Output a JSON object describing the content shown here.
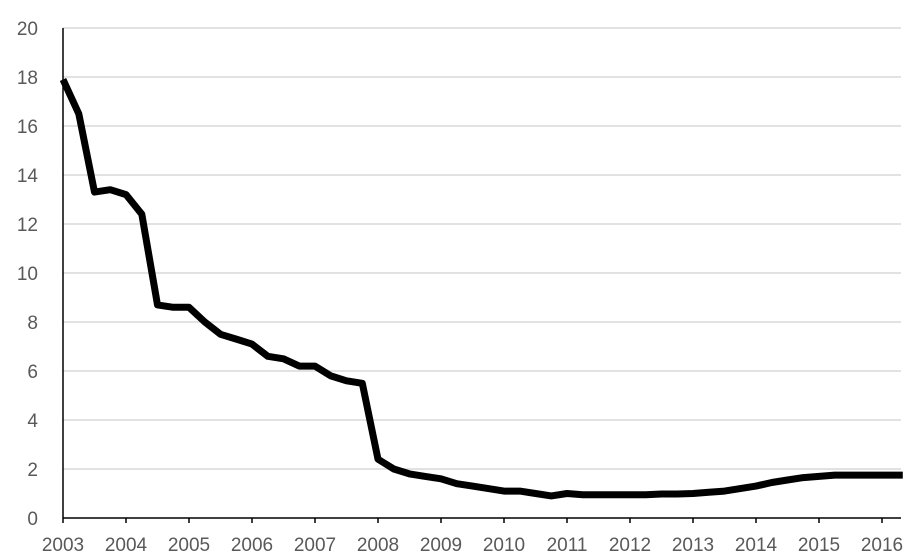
{
  "chart_data": {
    "type": "line",
    "title": "",
    "xlabel": "",
    "ylabel": "",
    "ylim": [
      0,
      20
    ],
    "yticks": [
      0,
      2,
      4,
      6,
      8,
      10,
      12,
      14,
      16,
      18,
      20
    ],
    "xlim": [
      2003,
      2016.33
    ],
    "xticks": [
      "2003",
      "2004",
      "2005",
      "2006",
      "2007",
      "2008",
      "2009",
      "2010",
      "2011",
      "2012",
      "2013",
      "2014",
      "2015",
      "2016"
    ],
    "grid": true,
    "legend": "none",
    "series": [
      {
        "color": "#000000",
        "x": [
          2003.0,
          2003.25,
          2003.5,
          2003.75,
          2004.0,
          2004.25,
          2004.5,
          2004.75,
          2005.0,
          2005.25,
          2005.5,
          2005.75,
          2006.0,
          2006.25,
          2006.5,
          2006.75,
          2007.0,
          2007.25,
          2007.5,
          2007.75,
          2008.0,
          2008.25,
          2008.5,
          2008.75,
          2009.0,
          2009.25,
          2009.5,
          2009.75,
          2010.0,
          2010.25,
          2010.5,
          2010.75,
          2011.0,
          2011.25,
          2011.5,
          2011.75,
          2012.0,
          2012.25,
          2012.5,
          2012.75,
          2013.0,
          2013.25,
          2013.5,
          2013.75,
          2014.0,
          2014.25,
          2014.5,
          2014.75,
          2015.0,
          2015.25,
          2015.5,
          2015.75,
          2016.0,
          2016.25,
          2016.33
        ],
        "y": [
          17.9,
          16.5,
          13.3,
          13.4,
          13.2,
          12.4,
          8.7,
          8.6,
          8.6,
          8.0,
          7.5,
          7.3,
          7.1,
          6.6,
          6.5,
          6.2,
          6.2,
          5.8,
          5.6,
          5.5,
          2.4,
          2.0,
          1.8,
          1.7,
          1.6,
          1.4,
          1.3,
          1.2,
          1.1,
          1.1,
          1.0,
          0.9,
          1.0,
          0.95,
          0.95,
          0.95,
          0.95,
          0.95,
          0.98,
          0.98,
          1.0,
          1.05,
          1.1,
          1.2,
          1.3,
          1.45,
          1.55,
          1.65,
          1.7,
          1.75,
          1.75,
          1.75,
          1.75,
          1.75,
          1.75
        ]
      }
    ]
  }
}
